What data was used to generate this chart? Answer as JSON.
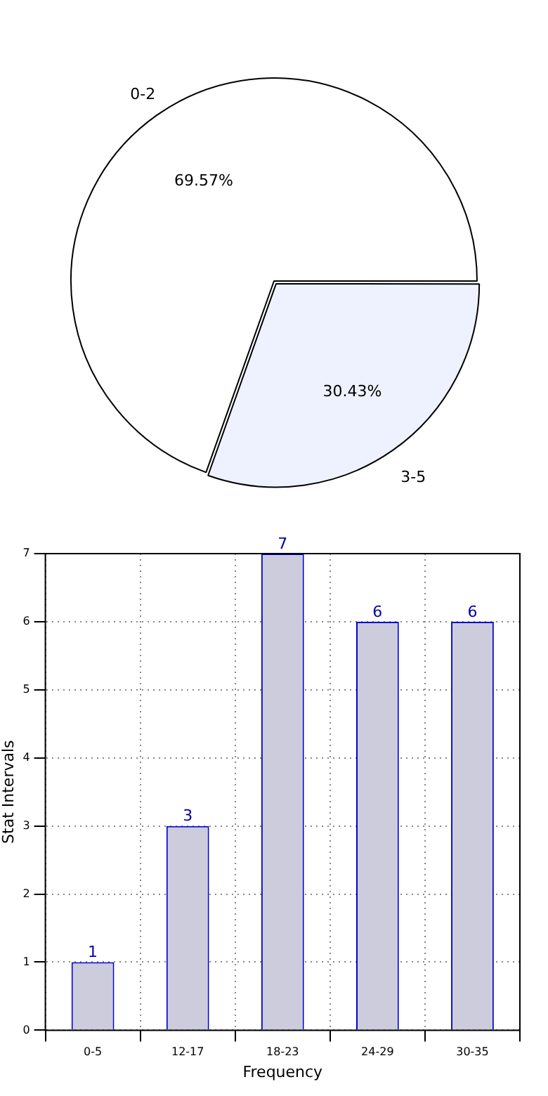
{
  "chart_data": [
    {
      "type": "pie",
      "categories": [
        "0-2",
        "3-5"
      ],
      "values": [
        69.57,
        30.43
      ],
      "colors": [
        "#ffffff",
        "#eef2ff"
      ],
      "value_labels": [
        "69.57%",
        "30.43%"
      ],
      "legend": false
    },
    {
      "type": "bar",
      "xlabel": "Frequency",
      "ylabel": "Stat Intervals",
      "categories": [
        "0-5",
        "12-17",
        "18-23",
        "24-29",
        "30-35"
      ],
      "values": [
        1,
        3,
        7,
        6,
        6
      ],
      "color": "#ccccdd",
      "ylim": [
        0,
        7
      ],
      "yticks": [
        0,
        1,
        2,
        3,
        4,
        5,
        6,
        7
      ],
      "grid": true,
      "data_labels": true,
      "legend": false
    }
  ]
}
